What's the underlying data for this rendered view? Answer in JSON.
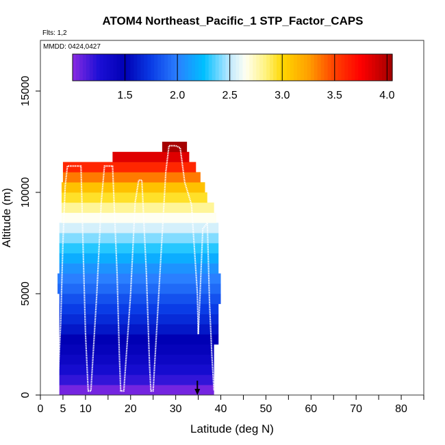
{
  "chart_data": {
    "type": "heatmap",
    "title": "ATOM4 Northeast_Pacific_1 STP_Factor_CAPS",
    "flights_label": "Flts: 1,2",
    "date_label": "MMDD: 0424,0427",
    "xlabel": "Latitude (deg N)",
    "ylabel": "Altitude (m)",
    "xlim": [
      0,
      85
    ],
    "ylim": [
      0,
      17500
    ],
    "x_tick_labels": [
      "0",
      "5",
      "10",
      "20",
      "30",
      "40",
      "50",
      "60",
      "70",
      "80"
    ],
    "x_ticks": [
      0,
      5,
      10,
      20,
      30,
      40,
      50,
      60,
      70,
      80
    ],
    "x_minor_ticks": [
      15,
      25,
      35,
      45,
      55,
      65,
      75,
      85
    ],
    "y_ticks": [
      0,
      5000,
      10000,
      15000
    ],
    "y_tick_labels": [
      "0",
      "5000",
      "10000",
      "15000"
    ],
    "colorbar": {
      "min": 1.0,
      "max": 4.05,
      "ticks": [
        1.5,
        2.0,
        2.5,
        3.0,
        3.5,
        4.0
      ],
      "tick_labels": [
        "1.5",
        "2.0",
        "2.5",
        "3.0",
        "3.5",
        "4.0"
      ],
      "colors": [
        {
          "v": 1.0,
          "c": "#8a2be2"
        },
        {
          "v": 1.25,
          "c": "#1c0fd6"
        },
        {
          "v": 1.5,
          "c": "#0000b4"
        },
        {
          "v": 1.75,
          "c": "#0a3ce6"
        },
        {
          "v": 2.0,
          "c": "#2a7fff"
        },
        {
          "v": 2.25,
          "c": "#00bfff"
        },
        {
          "v": 2.5,
          "c": "#bfe9ff"
        },
        {
          "v": 2.65,
          "c": "#fffff2"
        },
        {
          "v": 2.85,
          "c": "#fff27a"
        },
        {
          "v": 3.0,
          "c": "#ffd700"
        },
        {
          "v": 3.25,
          "c": "#ffa000"
        },
        {
          "v": 3.5,
          "c": "#ff4000"
        },
        {
          "v": 3.75,
          "c": "#ff0000"
        },
        {
          "v": 4.05,
          "c": "#a00000"
        }
      ]
    },
    "layers": [
      {
        "alt": 250,
        "lat_min": 4.2,
        "lat_max": 38.5,
        "value": 1.05
      },
      {
        "alt": 750,
        "lat_min": 4.2,
        "lat_max": 38.5,
        "value": 1.2
      },
      {
        "alt": 1250,
        "lat_min": 4.2,
        "lat_max": 38.5,
        "value": 1.3
      },
      {
        "alt": 1750,
        "lat_min": 4.2,
        "lat_max": 38.5,
        "value": 1.38
      },
      {
        "alt": 2250,
        "lat_min": 4.2,
        "lat_max": 38.5,
        "value": 1.45
      },
      {
        "alt": 2750,
        "lat_min": 4.2,
        "lat_max": 39.5,
        "value": 1.5
      },
      {
        "alt": 3250,
        "lat_min": 4.2,
        "lat_max": 39.5,
        "value": 1.6
      },
      {
        "alt": 3750,
        "lat_min": 4.2,
        "lat_max": 39.5,
        "value": 1.68
      },
      {
        "alt": 4250,
        "lat_min": 4.2,
        "lat_max": 39.5,
        "value": 1.75
      },
      {
        "alt": 4750,
        "lat_min": 4.2,
        "lat_max": 40.0,
        "value": 1.83
      },
      {
        "alt": 5250,
        "lat_min": 3.8,
        "lat_max": 40.0,
        "value": 1.92
      },
      {
        "alt": 5750,
        "lat_min": 3.8,
        "lat_max": 40.0,
        "value": 2.0
      },
      {
        "alt": 6250,
        "lat_min": 4.2,
        "lat_max": 39.5,
        "value": 2.08
      },
      {
        "alt": 6750,
        "lat_min": 4.2,
        "lat_max": 39.5,
        "value": 2.18
      },
      {
        "alt": 7250,
        "lat_min": 4.2,
        "lat_max": 39.5,
        "value": 2.3
      },
      {
        "alt": 7750,
        "lat_min": 4.2,
        "lat_max": 39.5,
        "value": 2.42
      },
      {
        "alt": 8250,
        "lat_min": 4.2,
        "lat_max": 39.5,
        "value": 2.55
      },
      {
        "alt": 8750,
        "lat_min": 4.7,
        "lat_max": 39.0,
        "value": 2.65
      },
      {
        "alt": 9250,
        "lat_min": 4.7,
        "lat_max": 38.5,
        "value": 2.8
      },
      {
        "alt": 9750,
        "lat_min": 4.7,
        "lat_max": 37.0,
        "value": 2.95
      },
      {
        "alt": 10250,
        "lat_min": 4.7,
        "lat_max": 36.5,
        "value": 3.1
      },
      {
        "alt": 10750,
        "lat_min": 5.0,
        "lat_max": 35.5,
        "value": 3.35
      },
      {
        "alt": 11250,
        "lat_min": 5.0,
        "lat_max": 34.5,
        "value": 3.6
      },
      {
        "alt": 11750,
        "lat_min": 16.0,
        "lat_max": 33.0,
        "value": 3.85
      },
      {
        "alt": 12250,
        "lat_min": 27.0,
        "lat_max": 32.5,
        "value": 4.03
      }
    ],
    "flight_track": [
      [
        3.8,
        200
      ],
      [
        4.5,
        3500
      ],
      [
        5.0,
        7500
      ],
      [
        5.5,
        10300
      ],
      [
        6.0,
        11300
      ],
      [
        8.0,
        11300
      ],
      [
        9.0,
        11300
      ],
      [
        9.5,
        7000
      ],
      [
        10.0,
        3000
      ],
      [
        10.6,
        200
      ],
      [
        11.2,
        200
      ],
      [
        12.5,
        5000
      ],
      [
        13.5,
        9500
      ],
      [
        14.2,
        11300
      ],
      [
        16.0,
        11300
      ],
      [
        17.0,
        6000
      ],
      [
        17.5,
        2000
      ],
      [
        17.8,
        200
      ],
      [
        18.5,
        200
      ],
      [
        20.0,
        5000
      ],
      [
        21.0,
        9500
      ],
      [
        21.8,
        10600
      ],
      [
        22.5,
        10600
      ],
      [
        23.5,
        6000
      ],
      [
        24.2,
        1500
      ],
      [
        24.5,
        200
      ],
      [
        25.0,
        200
      ],
      [
        26.5,
        6000
      ],
      [
        27.8,
        11000
      ],
      [
        28.5,
        12300
      ],
      [
        30.0,
        12300
      ],
      [
        31.0,
        12200
      ],
      [
        32.0,
        10500
      ],
      [
        33.5,
        9400
      ],
      [
        34.8,
        5000
      ],
      [
        35.0,
        3000
      ],
      [
        35.3,
        4500
      ],
      [
        36.0,
        8200
      ],
      [
        37.0,
        8500
      ],
      [
        37.5,
        4500
      ],
      [
        38.0,
        2000
      ],
      [
        38.5,
        200
      ]
    ],
    "arrow_lat": 34.8
  }
}
